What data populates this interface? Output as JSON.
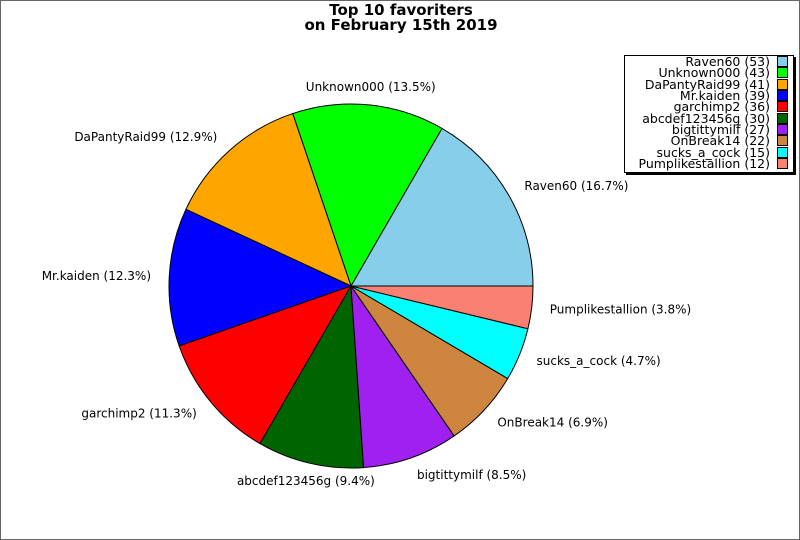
{
  "chart_data": {
    "type": "pie",
    "title_line1": "Top 10 favoriters",
    "title_line2": "on February 15th 2019",
    "legend_placement": "top-right",
    "start_angle_deg": 0,
    "direction": "counterclockwise",
    "slices": [
      {
        "name": "Raven60",
        "value": 53,
        "label": "Raven60 (16.7%)",
        "legend": "Raven60 (53)",
        "color": "#87ceeb"
      },
      {
        "name": "Unknown000",
        "value": 43,
        "label": "Unknown000 (13.5%)",
        "legend": "Unknown000 (43)",
        "color": "#00ff00"
      },
      {
        "name": "DaPantyRaid99",
        "value": 41,
        "label": "DaPantyRaid99 (12.9%)",
        "legend": "DaPantyRaid99 (41)",
        "color": "#ffa500"
      },
      {
        "name": "Mr.kaiden",
        "value": 39,
        "label": "Mr.kaiden (12.3%)",
        "legend": "Mr.kaiden (39)",
        "color": "#0000ff"
      },
      {
        "name": "garchimp2",
        "value": 36,
        "label": "garchimp2 (11.3%)",
        "legend": "garchimp2 (36)",
        "color": "#ff0000"
      },
      {
        "name": "abcdef123456g",
        "value": 30,
        "label": "abcdef123456g (9.4%)",
        "legend": "abcdef123456g (30)",
        "color": "#006400"
      },
      {
        "name": "bigtittymilf",
        "value": 27,
        "label": "bigtittymilf (8.5%)",
        "legend": "bigtittymilf (27)",
        "color": "#a020f0"
      },
      {
        "name": "OnBreak14",
        "value": 22,
        "label": "OnBreak14 (6.9%)",
        "legend": "OnBreak14 (22)",
        "color": "#cd853f"
      },
      {
        "name": "sucks_a_cock",
        "value": 15,
        "label": "sucks_a_cock (4.7%)",
        "legend": "sucks_a_cock (15)",
        "color": "#00ffff"
      },
      {
        "name": "Pumplikestallion",
        "value": 12,
        "label": "Pumplikestallion (3.8%)",
        "legend": "Pumplikestallion (12)",
        "color": "#fa8072"
      }
    ]
  }
}
